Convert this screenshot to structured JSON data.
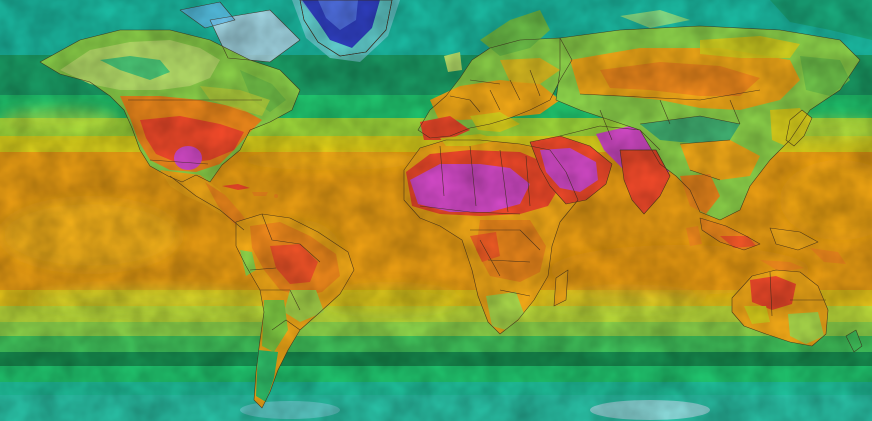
{
  "map": {
    "type": "world temperature heatmap",
    "projection": "equirectangular",
    "labels_shown": false,
    "legend_shown": false,
    "palette": {
      "coldest": "#3a3fc2",
      "very_cold": "#b7d8ec",
      "cold": "#1bb8a0",
      "cool": "#20c46e",
      "cool_dark": "#168a4e",
      "mild": "#8cd24a",
      "warm": "#d9cf1c",
      "warmer": "#f0b81a",
      "ocean_warm": "#ea9e14",
      "hot": "#f08a1c",
      "very_hot": "#f24a2a",
      "extreme": "#d44ac8",
      "border": "#3a2a1a"
    }
  }
}
